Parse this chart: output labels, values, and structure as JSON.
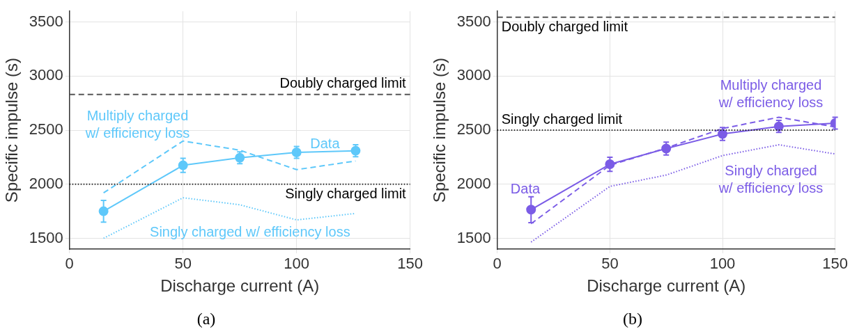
{
  "chart_data": [
    {
      "type": "line",
      "title": "(a)",
      "xlabel": "Discharge current (A)",
      "ylabel": "Specific impulse (s)",
      "xlim": [
        0,
        150
      ],
      "xticks": [
        0,
        50,
        100,
        150
      ],
      "ylim": [
        1400,
        3600
      ],
      "yticks": [
        1500,
        2000,
        2500,
        3000,
        3500
      ],
      "grid": true,
      "legend": false,
      "series": [
        {
          "name": "Data",
          "color": "#5ec8fa",
          "marker": "circle",
          "line_style": "solid",
          "x": [
            15,
            50,
            75,
            100,
            126
          ],
          "values": [
            1750,
            2175,
            2245,
            2295,
            2310
          ],
          "errors": [
            100,
            65,
            55,
            55,
            55
          ]
        },
        {
          "name": "Multiply charged w/ efficiency loss",
          "color": "#5ec8fa",
          "marker": "none",
          "line_style": "dashed",
          "x": [
            15,
            50,
            75,
            100,
            126
          ],
          "values": [
            1920,
            2400,
            2315,
            2135,
            2215
          ]
        },
        {
          "name": "Singly charged w/ efficiency loss",
          "color": "#5ec8fa",
          "marker": "none",
          "line_style": "dotted",
          "x": [
            15,
            50,
            75,
            100,
            126
          ],
          "values": [
            1500,
            1875,
            1810,
            1670,
            1730
          ]
        }
      ],
      "ref_lines": [
        {
          "axis": "y",
          "value": 2830,
          "label": "Doubly charged limit",
          "color": "#555555",
          "line_style": "dashed"
        },
        {
          "axis": "y",
          "value": 2000,
          "label": "Singly charged limit",
          "color": "#222222",
          "line_style": "dotted"
        }
      ]
    },
    {
      "type": "line",
      "title": "(b)",
      "xlabel": "Discharge current (A)",
      "ylabel": "Specific impulse (s)",
      "xlim": [
        0,
        150
      ],
      "xticks": [
        0,
        50,
        100,
        150
      ],
      "ylim": [
        1400,
        3600
      ],
      "yticks": [
        1500,
        2000,
        2500,
        3000,
        3500
      ],
      "grid": true,
      "legend": false,
      "series": [
        {
          "name": "Data",
          "color": "#7b5ce6",
          "marker": "circle",
          "line_style": "solid",
          "x": [
            15,
            50,
            75,
            100,
            125,
            150
          ],
          "values": [
            1765,
            2185,
            2330,
            2465,
            2535,
            2565
          ],
          "errors": [
            120,
            65,
            60,
            60,
            55,
            55
          ]
        },
        {
          "name": "Multiply charged w/ efficiency loss",
          "color": "#7b5ce6",
          "marker": "none",
          "line_style": "dashed",
          "x": [
            15,
            50,
            75,
            100,
            125,
            150
          ],
          "values": [
            1635,
            2175,
            2335,
            2515,
            2620,
            2530
          ]
        },
        {
          "name": "Singly charged w/ efficiency loss",
          "color": "#7b5ce6",
          "marker": "none",
          "line_style": "dotted",
          "x": [
            15,
            50,
            75,
            100,
            125,
            150
          ],
          "values": [
            1465,
            1980,
            2085,
            2265,
            2365,
            2280
          ]
        }
      ],
      "ref_lines": [
        {
          "axis": "y",
          "value": 3545,
          "label": "Doubly charged limit",
          "color": "#555555",
          "line_style": "dashed"
        },
        {
          "axis": "y",
          "value": 2500,
          "label": "Singly charged limit",
          "color": "#222222",
          "line_style": "dotted"
        }
      ]
    }
  ]
}
